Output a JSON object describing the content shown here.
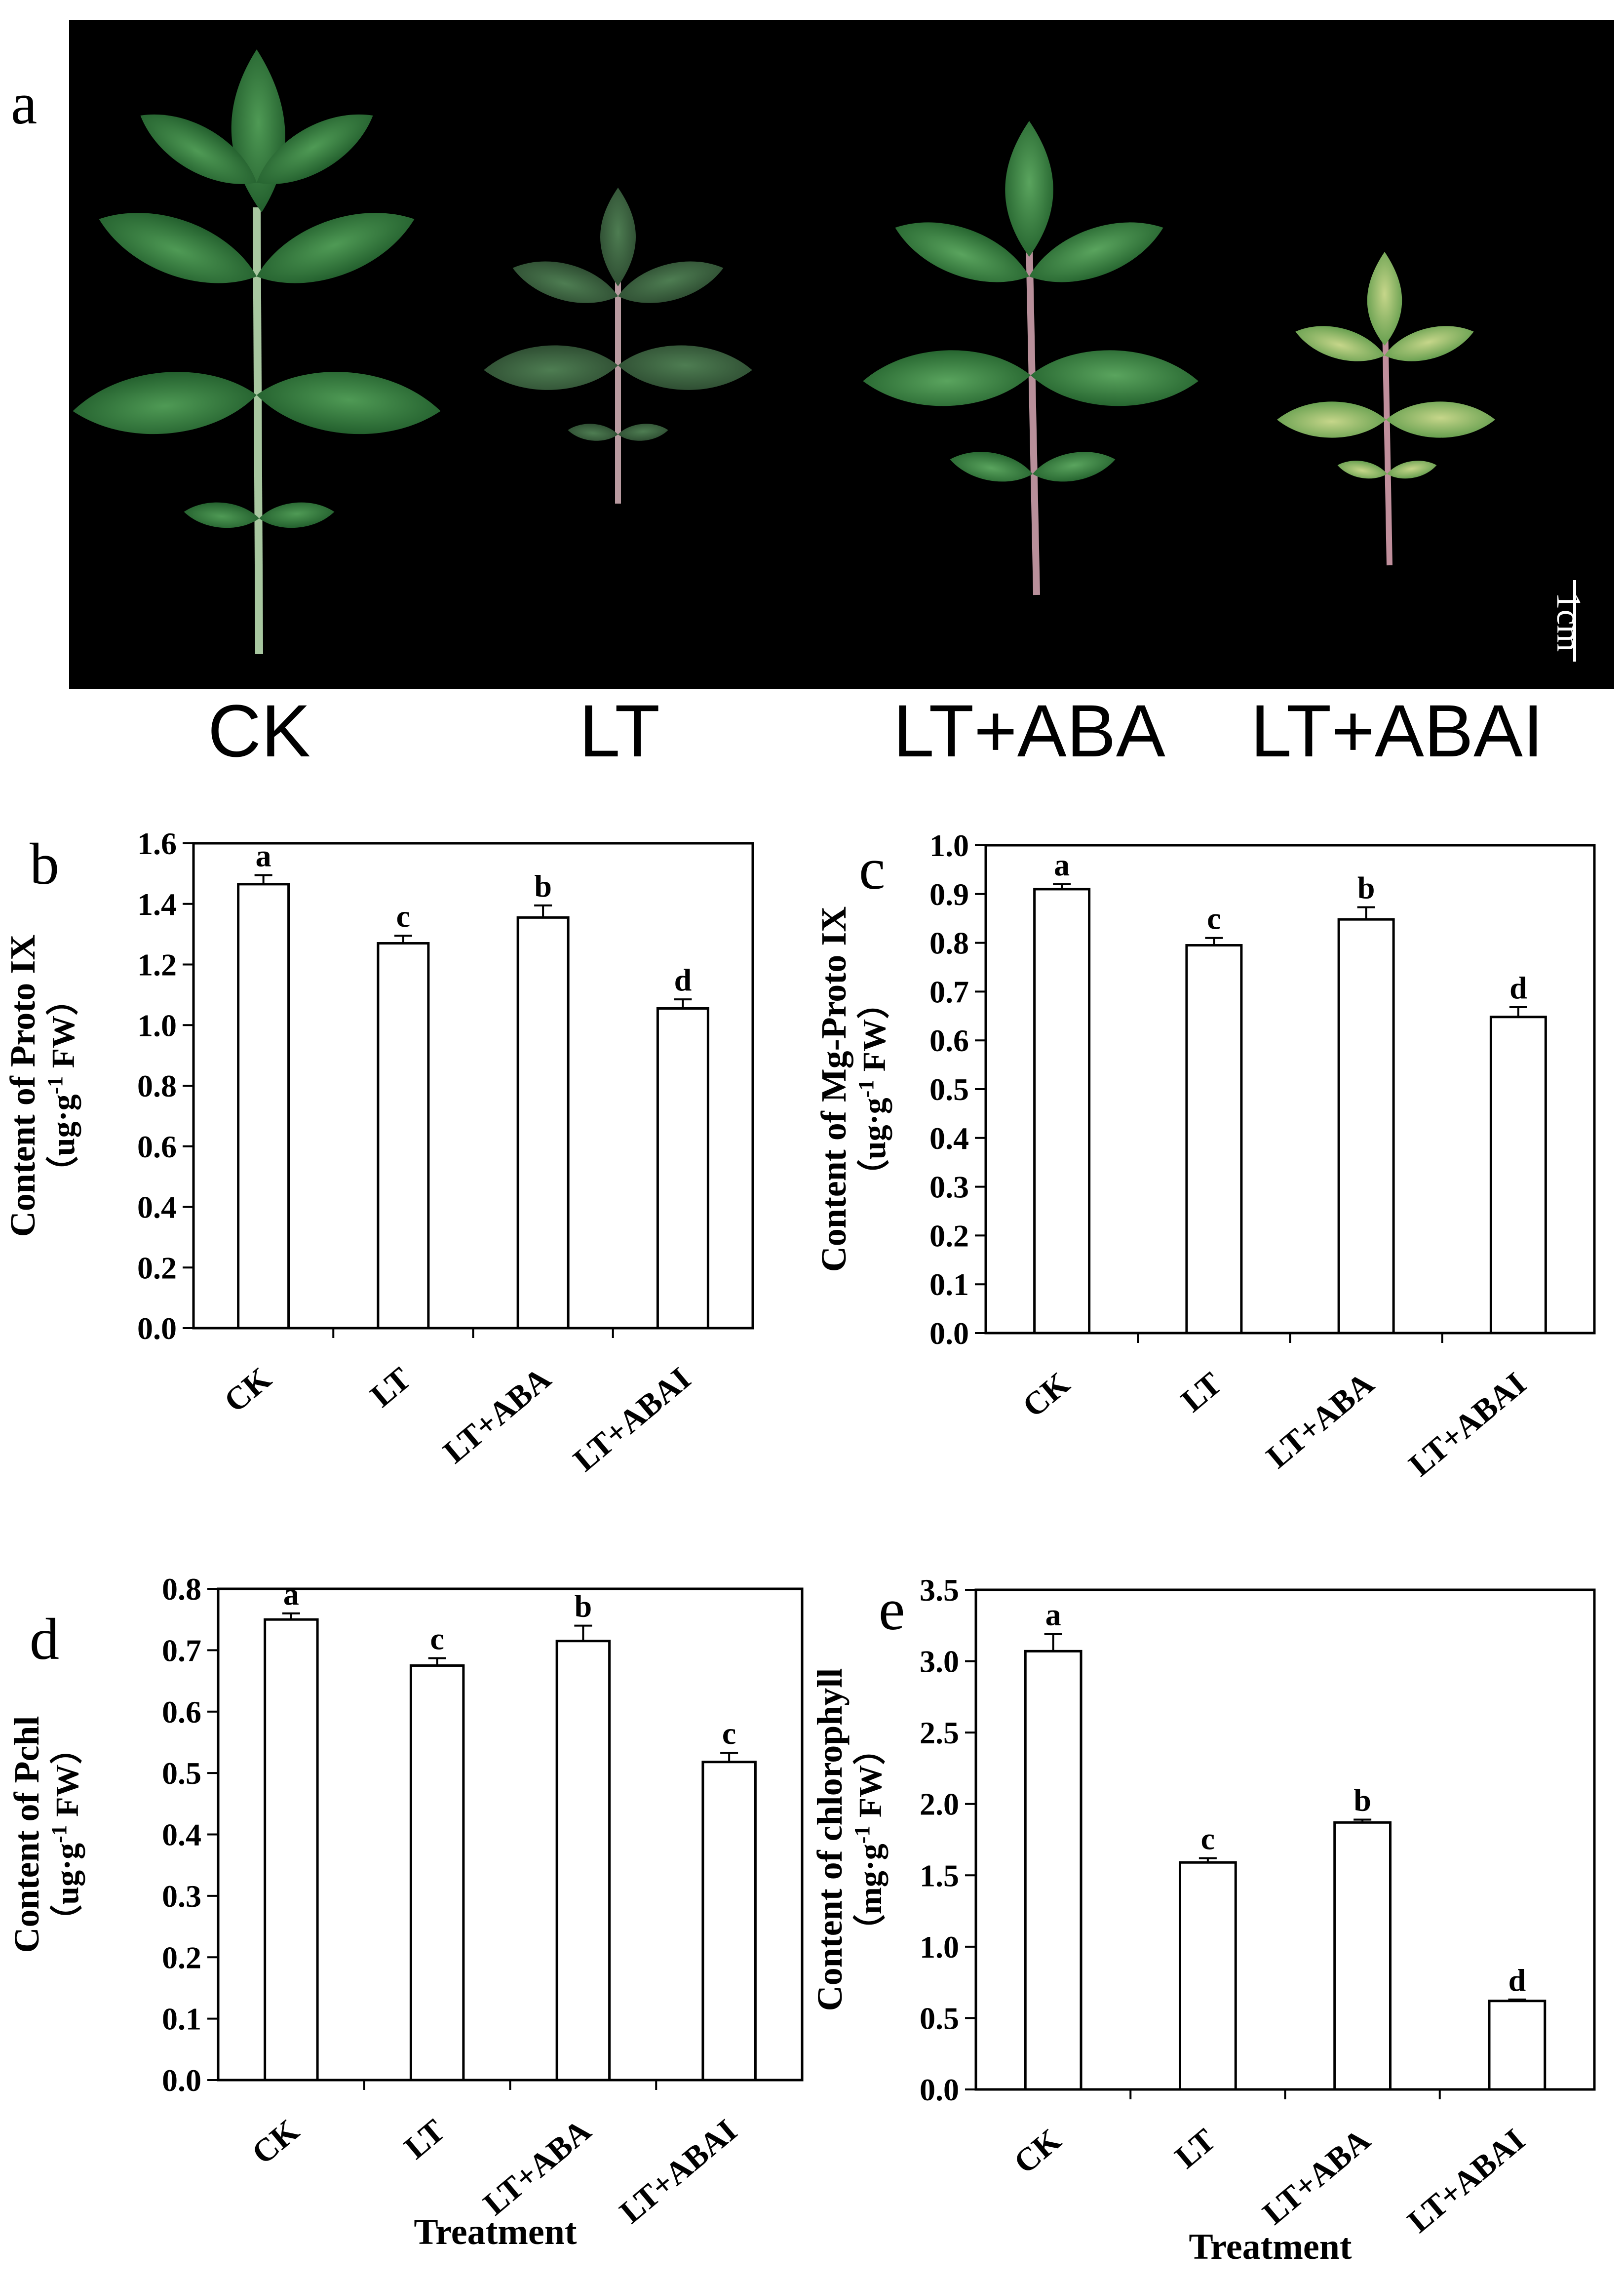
{
  "panels": {
    "a": "a",
    "b": "b",
    "c": "c",
    "d": "d",
    "e": "e"
  },
  "photo": {
    "scale_bar_label": "1cm",
    "treatment_labels": [
      "CK",
      "LT",
      "LT+ABA",
      "LT+ABAI"
    ]
  },
  "chart_data": [
    {
      "panel": "b",
      "type": "bar",
      "categories": [
        "CK",
        "LT",
        "LT+ABA",
        "LT+ABAI"
      ],
      "values": [
        1.465,
        1.27,
        1.355,
        1.055
      ],
      "errors": [
        0.03,
        0.025,
        0.04,
        0.03
      ],
      "significance": [
        "a",
        "c",
        "b",
        "d"
      ],
      "ylabel_line1": "Content of Proto IX",
      "ylabel_line2_pre": "（ug·g",
      "ylabel_line2_sup": "-1",
      "ylabel_line2_post": " FW）",
      "xlabel": "",
      "ylim": [
        0,
        1.6
      ],
      "yticks": [
        "0.0",
        "0.2",
        "0.4",
        "0.6",
        "0.8",
        "1.0",
        "1.2",
        "1.4",
        "1.6"
      ],
      "grid": false
    },
    {
      "panel": "c",
      "type": "bar",
      "categories": [
        "CK",
        "LT",
        "LT+ABA",
        "LT+ABAI"
      ],
      "values": [
        0.91,
        0.795,
        0.848,
        0.648
      ],
      "errors": [
        0.01,
        0.015,
        0.025,
        0.02
      ],
      "significance": [
        "a",
        "c",
        "b",
        "d"
      ],
      "ylabel_line1": "Content of Mg-Proto IX",
      "ylabel_line2_pre": "（ug·g",
      "ylabel_line2_sup": "-1",
      "ylabel_line2_post": " FW）",
      "xlabel": "",
      "ylim": [
        0,
        1.0
      ],
      "yticks": [
        "0.0",
        "0.1",
        "0.2",
        "0.3",
        "0.4",
        "0.5",
        "0.6",
        "0.7",
        "0.8",
        "0.9",
        "1.0"
      ],
      "grid": false
    },
    {
      "panel": "d",
      "type": "bar",
      "categories": [
        "CK",
        "LT",
        "LT+ABA",
        "LT+ABAI"
      ],
      "values": [
        0.75,
        0.675,
        0.715,
        0.518
      ],
      "errors": [
        0.01,
        0.012,
        0.025,
        0.015
      ],
      "significance": [
        "a",
        "c",
        "b",
        "c"
      ],
      "ylabel_line1": "Content of Pchl",
      "ylabel_line2_pre": "（ug·g",
      "ylabel_line2_sup": "-1",
      "ylabel_line2_post": " FW）",
      "xlabel": "Treatment",
      "ylim": [
        0,
        0.8
      ],
      "yticks": [
        "0.0",
        "0.1",
        "0.2",
        "0.3",
        "0.4",
        "0.5",
        "0.6",
        "0.7",
        "0.8"
      ],
      "grid": false
    },
    {
      "panel": "e",
      "type": "bar",
      "categories": [
        "CK",
        "LT",
        "LT+ABA",
        "LT+ABAI"
      ],
      "values": [
        3.07,
        1.59,
        1.87,
        0.62
      ],
      "errors": [
        0.12,
        0.03,
        0.02,
        0.01
      ],
      "significance": [
        "a",
        "c",
        "b",
        "d"
      ],
      "ylabel_line1": "Content of chlorophyll",
      "ylabel_line2_pre": "（mg·g",
      "ylabel_line2_sup": "-1",
      "ylabel_line2_post": " FW）",
      "xlabel": "Treatment",
      "ylim": [
        0,
        3.5
      ],
      "yticks": [
        "0.0",
        "0.5",
        "1.0",
        "1.5",
        "2.0",
        "2.5",
        "3.0",
        "3.5"
      ],
      "grid": false
    }
  ]
}
